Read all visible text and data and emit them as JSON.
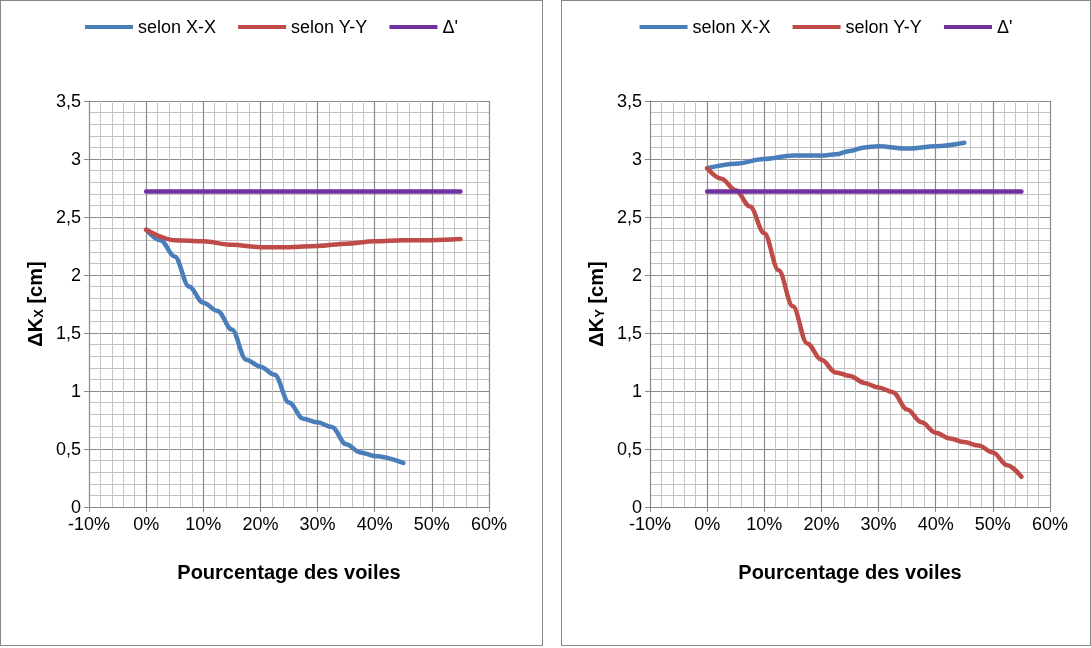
{
  "chart_data": [
    {
      "type": "line",
      "xlabel": "Pourcentage des voiles",
      "ylabel": "ΔK$_{X}$ [cm]",
      "legend": "top",
      "grid": true,
      "marker": "none",
      "line_style": "solid",
      "xlim": [
        -10,
        60
      ],
      "xticks": [
        {
          "value": -10,
          "label": "-10%"
        },
        {
          "value": 0,
          "label": "0%"
        },
        {
          "value": 10,
          "label": "10%"
        },
        {
          "value": 20,
          "label": "20%"
        },
        {
          "value": 30,
          "label": "30%"
        },
        {
          "value": 40,
          "label": "40%"
        },
        {
          "value": 50,
          "label": "50%"
        },
        {
          "value": 60,
          "label": "60%"
        }
      ],
      "ylim": [
        0,
        3.5
      ],
      "yticks": [
        {
          "value": 0,
          "label": "0"
        },
        {
          "value": 0.5,
          "label": "0,5"
        },
        {
          "value": 1,
          "label": "1"
        },
        {
          "value": 1.5,
          "label": "1,5"
        },
        {
          "value": 2,
          "label": "2"
        },
        {
          "value": 2.5,
          "label": "2,5"
        },
        {
          "value": 3,
          "label": "3"
        },
        {
          "value": 3.5,
          "label": "3,5"
        }
      ],
      "series": [
        {
          "name": "selon X-X",
          "color": "#4a7ebb",
          "x": [
            0,
            2.5,
            5,
            7.5,
            10,
            12.5,
            15,
            17.5,
            20,
            22.5,
            25,
            27.5,
            30,
            32.5,
            35,
            37.5,
            40,
            45
          ],
          "values": [
            2.39,
            2.3,
            2.16,
            1.9,
            1.76,
            1.69,
            1.53,
            1.27,
            1.21,
            1.14,
            0.9,
            0.76,
            0.73,
            0.69,
            0.54,
            0.47,
            0.44,
            0.38
          ]
        },
        {
          "name": "selon Y-Y",
          "color": "#be4b48",
          "x": [
            0,
            5,
            10,
            15,
            20,
            25,
            30,
            35,
            40,
            45,
            50,
            55
          ],
          "values": [
            2.39,
            2.3,
            2.29,
            2.26,
            2.24,
            2.24,
            2.25,
            2.27,
            2.29,
            2.3,
            2.3,
            2.31
          ]
        },
        {
          "name": "Δ'",
          "color": "#7030a0",
          "x": [
            0,
            55
          ],
          "values": [
            2.72,
            2.72
          ]
        }
      ]
    },
    {
      "type": "line",
      "xlabel": "Pourcentage des voiles",
      "ylabel": "ΔK$_{Y}$ [cm]",
      "legend": "top",
      "grid": true,
      "marker": "none",
      "line_style": "solid",
      "xlim": [
        -10,
        60
      ],
      "xticks": [
        {
          "value": -10,
          "label": "-10%"
        },
        {
          "value": 0,
          "label": "0%"
        },
        {
          "value": 10,
          "label": "10%"
        },
        {
          "value": 20,
          "label": "20%"
        },
        {
          "value": 30,
          "label": "30%"
        },
        {
          "value": 40,
          "label": "40%"
        },
        {
          "value": 50,
          "label": "50%"
        },
        {
          "value": 60,
          "label": "60%"
        }
      ],
      "ylim": [
        0,
        3.5
      ],
      "yticks": [
        {
          "value": 0,
          "label": "0"
        },
        {
          "value": 0.5,
          "label": "0,5"
        },
        {
          "value": 1,
          "label": "1"
        },
        {
          "value": 1.5,
          "label": "1,5"
        },
        {
          "value": 2,
          "label": "2"
        },
        {
          "value": 2.5,
          "label": "2,5"
        },
        {
          "value": 3,
          "label": "3"
        },
        {
          "value": 3.5,
          "label": "3,5"
        }
      ],
      "series": [
        {
          "name": "selon X-X",
          "color": "#4a7ebb",
          "x": [
            0,
            5,
            10,
            15,
            20,
            22.5,
            25,
            27.5,
            30,
            35,
            40,
            45
          ],
          "values": [
            2.92,
            2.96,
            3.0,
            3.03,
            3.03,
            3.04,
            3.07,
            3.1,
            3.11,
            3.09,
            3.11,
            3.14
          ]
        },
        {
          "name": "selon Y-Y",
          "color": "#be4b48",
          "x": [
            0,
            2.5,
            5,
            7.5,
            10,
            12.5,
            15,
            17.5,
            20,
            22.5,
            25,
            27.5,
            30,
            32.5,
            35,
            37.5,
            40,
            42.5,
            45,
            47.5,
            50,
            52.5,
            55
          ],
          "values": [
            2.92,
            2.83,
            2.73,
            2.59,
            2.36,
            2.04,
            1.73,
            1.41,
            1.27,
            1.16,
            1.13,
            1.07,
            1.03,
            0.99,
            0.84,
            0.73,
            0.64,
            0.59,
            0.56,
            0.53,
            0.47,
            0.36,
            0.26
          ]
        },
        {
          "name": "Δ'",
          "color": "#7030a0",
          "x": [
            0,
            55
          ],
          "values": [
            2.72,
            2.72
          ]
        }
      ]
    }
  ]
}
